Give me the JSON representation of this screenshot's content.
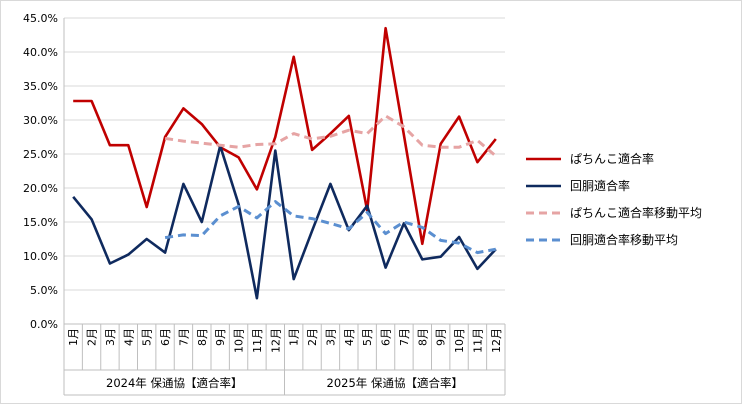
{
  "chart_data": {
    "type": "line",
    "categories": [
      "1月",
      "2月",
      "3月",
      "4月",
      "5月",
      "6月",
      "7月",
      "8月",
      "9月",
      "10月",
      "11月",
      "12月",
      "1月",
      "2月",
      "3月",
      "4月",
      "5月",
      "6月",
      "7月",
      "8月",
      "9月",
      "10月",
      "11月",
      "12月"
    ],
    "category_groups": [
      {
        "label": "2024年 保通協【適合率】",
        "count": 12
      },
      {
        "label": "2025年 保通協【適合率】",
        "count": 12
      }
    ],
    "y_ticks": [
      "0.0%",
      "5.0%",
      "10.0%",
      "15.0%",
      "20.0%",
      "25.0%",
      "30.0%",
      "35.0%",
      "40.0%",
      "45.0%"
    ],
    "ylim": [
      0,
      45
    ],
    "y_unit": "percent",
    "grid": "horizontal",
    "legend_position": "right",
    "series": [
      {
        "name": "ぱちんこ適合率",
        "color": "#c00000",
        "style": "solid",
        "values": [
          32.8,
          32.8,
          26.3,
          26.3,
          17.2,
          27.5,
          31.7,
          29.4,
          26.0,
          24.5,
          19.8,
          27.5,
          39.3,
          25.6,
          28.0,
          30.6,
          16.7,
          43.5,
          27.8,
          11.8,
          26.5,
          30.5,
          23.8,
          27.2
        ]
      },
      {
        "name": "回胴適合率",
        "color": "#0f2a5e",
        "style": "solid",
        "values": [
          18.7,
          15.4,
          8.9,
          10.2,
          12.5,
          10.5,
          20.6,
          15.0,
          26.2,
          17.6,
          3.8,
          25.5,
          6.6,
          13.7,
          20.6,
          13.8,
          17.4,
          8.3,
          14.8,
          9.5,
          9.9,
          12.8,
          8.1,
          11.0
        ]
      },
      {
        "name": "ぱちんこ適合率移動平均",
        "color": "#e6a4a4",
        "style": "dashed",
        "values": [
          null,
          null,
          null,
          null,
          null,
          27.3,
          26.9,
          26.6,
          26.3,
          26.0,
          26.4,
          26.5,
          28.0,
          27.2,
          27.6,
          28.5,
          28.0,
          30.6,
          29.0,
          26.3,
          26.0,
          26.0,
          27.0,
          24.7
        ]
      },
      {
        "name": "回胴適合率移動平均",
        "color": "#5b8fd0",
        "style": "dashed",
        "values": [
          null,
          null,
          null,
          null,
          null,
          12.7,
          13.1,
          13.0,
          15.9,
          17.3,
          15.6,
          18.0,
          15.9,
          15.5,
          14.8,
          14.0,
          16.4,
          13.3,
          15.0,
          14.2,
          12.3,
          11.9,
          10.5,
          11.0
        ]
      }
    ]
  }
}
